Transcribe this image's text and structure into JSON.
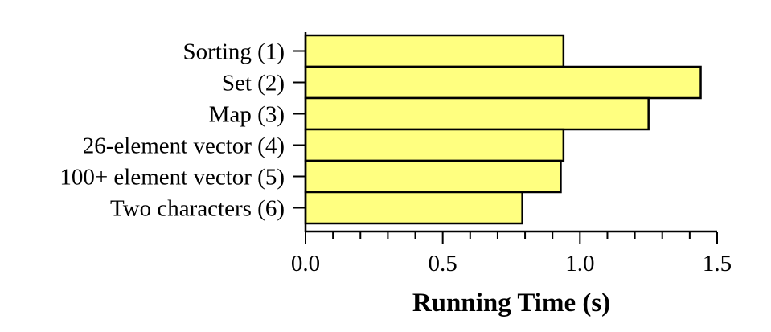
{
  "chart_data": {
    "type": "bar",
    "orientation": "horizontal",
    "categories": [
      "Sorting (1)",
      "Set (2)",
      "Map (3)",
      "26-element vector (4)",
      "100+ element vector (5)",
      "Two characters (6)"
    ],
    "values": [
      0.94,
      1.44,
      1.25,
      0.94,
      0.93,
      0.79
    ],
    "title": "",
    "xlabel": "Running Time (s)",
    "ylabel": "",
    "xlim": [
      0,
      1.5
    ],
    "x_ticks": [
      0,
      0.5,
      1.0,
      1.5
    ],
    "x_tick_labels": [
      "0.0",
      "0.5",
      "1.0",
      "1.5"
    ],
    "grid": false,
    "legend": "none",
    "colors": {
      "bar_fill": "#ffff80",
      "bar_stroke": "#000000"
    }
  }
}
